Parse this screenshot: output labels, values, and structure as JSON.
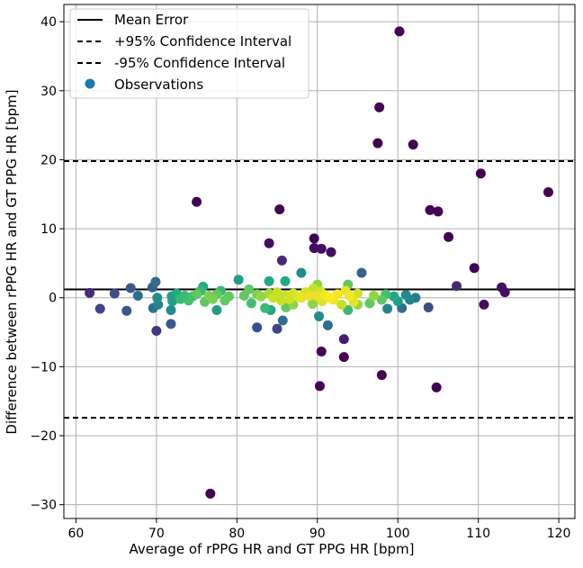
{
  "chart_data": {
    "type": "scatter",
    "title": "",
    "xlabel": "Average of rPPG HR and GT PPG HR [bpm]",
    "ylabel": "Difference between rPPG HR and GT PPG HR [bpm]",
    "xlim": [
      58.5,
      122
    ],
    "ylim": [
      -32,
      42.5
    ],
    "xticks": [
      60,
      70,
      80,
      90,
      100,
      110,
      120
    ],
    "yticks": [
      -30,
      -20,
      -10,
      0,
      10,
      20,
      30,
      40
    ],
    "grid": true,
    "legend_position": "upper-left",
    "reference_lines": [
      {
        "name": "Mean Error",
        "y": 1.2,
        "style": "solid",
        "color": "#000000"
      },
      {
        "name": "+95% Confidence Interval",
        "y": 19.8,
        "style": "dashed",
        "color": "#000000"
      },
      {
        "name": "-95% Confidence Interval",
        "y": -17.4,
        "style": "dashed",
        "color": "#000000"
      }
    ],
    "series": [
      {
        "name": "Observations",
        "legend_color": "#1f77b4",
        "colormap": "viridis (color by point density)",
        "points": [
          [
            61.7,
            0.7,
            0.15
          ],
          [
            63.0,
            -1.6,
            0.25
          ],
          [
            64.8,
            0.6,
            0.3
          ],
          [
            66.3,
            -1.9,
            0.35
          ],
          [
            66.8,
            1.4,
            0.35
          ],
          [
            67.7,
            0.3,
            0.45
          ],
          [
            69.5,
            1.5,
            0.4
          ],
          [
            69.6,
            -1.5,
            0.45
          ],
          [
            69.9,
            2.3,
            0.45
          ],
          [
            70.0,
            -4.8,
            0.2
          ],
          [
            70.1,
            0.0,
            0.6
          ],
          [
            70.2,
            -1.0,
            0.55
          ],
          [
            71.8,
            -1.8,
            0.6
          ],
          [
            71.8,
            -3.8,
            0.35
          ],
          [
            71.9,
            0.2,
            0.7
          ],
          [
            72.0,
            -0.5,
            0.7
          ],
          [
            72.5,
            0.6,
            0.75
          ],
          [
            73.0,
            -0.2,
            0.8
          ],
          [
            73.5,
            0.3,
            0.8
          ],
          [
            74.0,
            -0.4,
            0.82
          ],
          [
            74.5,
            0.2,
            0.82
          ],
          [
            75.0,
            0.5,
            0.85
          ],
          [
            75.0,
            13.9,
            0.0
          ],
          [
            75.5,
            1.0,
            0.8
          ],
          [
            75.8,
            1.6,
            0.75
          ],
          [
            76.0,
            -0.6,
            0.85
          ],
          [
            76.5,
            0.3,
            0.88
          ],
          [
            76.7,
            -28.4,
            0.0
          ],
          [
            77.0,
            -0.2,
            0.88
          ],
          [
            77.5,
            0.5,
            0.85
          ],
          [
            77.5,
            -1.8,
            0.7
          ],
          [
            78.0,
            1.0,
            0.8
          ],
          [
            78.5,
            -0.4,
            0.85
          ],
          [
            79.0,
            0.2,
            0.85
          ],
          [
            80.2,
            2.6,
            0.7
          ],
          [
            80.9,
            0.3,
            0.85
          ],
          [
            81.5,
            1.2,
            0.85
          ],
          [
            81.8,
            -0.8,
            0.82
          ],
          [
            82.5,
            0.5,
            0.88
          ],
          [
            82.5,
            -4.3,
            0.3
          ],
          [
            83.0,
            0.2,
            0.9
          ],
          [
            83.5,
            -1.5,
            0.8
          ],
          [
            84.0,
            0.6,
            0.92
          ],
          [
            84.0,
            2.4,
            0.75
          ],
          [
            84.2,
            -1.8,
            0.75
          ],
          [
            84.0,
            7.9,
            0.05
          ],
          [
            84.5,
            0.0,
            0.95
          ],
          [
            85.0,
            -4.5,
            0.25
          ],
          [
            85.0,
            0.8,
            0.95
          ],
          [
            85.3,
            12.8,
            0.0
          ],
          [
            85.5,
            -0.4,
            0.95
          ],
          [
            85.6,
            5.4,
            0.15
          ],
          [
            85.7,
            -3.3,
            0.45
          ],
          [
            86.0,
            0.3,
            0.95
          ],
          [
            86.0,
            2.4,
            0.75
          ],
          [
            86.1,
            -1.4,
            0.85
          ],
          [
            86.5,
            -0.2,
            0.96
          ],
          [
            87.0,
            0.6,
            0.96
          ],
          [
            87.0,
            -1.0,
            0.9
          ],
          [
            87.5,
            0.2,
            0.97
          ],
          [
            88.0,
            3.6,
            0.6
          ],
          [
            88.0,
            0.0,
            0.98
          ],
          [
            88.5,
            0.8,
            0.96
          ],
          [
            89.0,
            0.3,
            0.98
          ],
          [
            89.4,
            -0.9,
            0.9
          ],
          [
            89.5,
            1.3,
            0.95
          ],
          [
            89.6,
            7.2,
            0.05
          ],
          [
            89.6,
            8.6,
            0.0
          ],
          [
            90.0,
            0.3,
            0.98
          ],
          [
            90.0,
            1.9,
            0.9
          ],
          [
            90.2,
            -2.7,
            0.6
          ],
          [
            90.3,
            -12.8,
            0.0
          ],
          [
            90.4,
            0.9,
            0.96
          ],
          [
            90.5,
            -7.8,
            0.0
          ],
          [
            90.5,
            7.1,
            0.05
          ],
          [
            90.6,
            -0.5,
            0.97
          ],
          [
            91.0,
            0.4,
            0.99
          ],
          [
            91.3,
            -4.0,
            0.45
          ],
          [
            91.5,
            0.0,
            1.0
          ],
          [
            91.7,
            6.6,
            0.05
          ],
          [
            92.0,
            -0.3,
            0.99
          ],
          [
            92.5,
            0.5,
            0.99
          ],
          [
            93.0,
            -1.0,
            0.95
          ],
          [
            93.3,
            -6.0,
            0.1
          ],
          [
            93.3,
            -8.6,
            0.0
          ],
          [
            93.5,
            1.0,
            0.98
          ],
          [
            93.8,
            -1.8,
            0.8
          ],
          [
            93.8,
            1.9,
            0.85
          ],
          [
            94.0,
            0.3,
            0.99
          ],
          [
            94.5,
            -0.6,
            0.98
          ],
          [
            95.0,
            0.6,
            0.96
          ],
          [
            95.0,
            -1.0,
            0.9
          ],
          [
            95.5,
            3.6,
            0.4
          ],
          [
            96.5,
            -0.8,
            0.85
          ],
          [
            97.0,
            0.3,
            0.9
          ],
          [
            97.5,
            22.4,
            0.0
          ],
          [
            97.7,
            27.6,
            0.0
          ],
          [
            98.0,
            -11.2,
            0.0
          ],
          [
            98.0,
            -0.3,
            0.85
          ],
          [
            98.5,
            0.5,
            0.82
          ],
          [
            98.7,
            -1.6,
            0.55
          ],
          [
            99.5,
            0.2,
            0.75
          ],
          [
            100.0,
            -0.5,
            0.7
          ],
          [
            100.2,
            38.6,
            0.0
          ],
          [
            100.5,
            -1.5,
            0.45
          ],
          [
            101.0,
            0.4,
            0.6
          ],
          [
            101.5,
            -0.3,
            0.55
          ],
          [
            101.9,
            22.2,
            0.0
          ],
          [
            102.2,
            0.0,
            0.5
          ],
          [
            103.8,
            -1.4,
            0.3
          ],
          [
            104.0,
            12.7,
            0.0
          ],
          [
            104.8,
            -13.0,
            0.0
          ],
          [
            105.0,
            12.5,
            0.0
          ],
          [
            106.3,
            8.8,
            0.0
          ],
          [
            107.3,
            1.7,
            0.15
          ],
          [
            109.5,
            4.3,
            0.0
          ],
          [
            110.3,
            18.0,
            0.0
          ],
          [
            110.7,
            -1.0,
            0.05
          ],
          [
            112.9,
            1.5,
            0.05
          ],
          [
            113.3,
            0.8,
            0.05
          ],
          [
            118.7,
            15.3,
            0.0
          ]
        ]
      }
    ],
    "legend": {
      "mean_label": "Mean Error",
      "upper_label": "+95% Confidence Interval",
      "lower_label": "-95% Confidence Interval",
      "obs_label": "Observations"
    }
  }
}
